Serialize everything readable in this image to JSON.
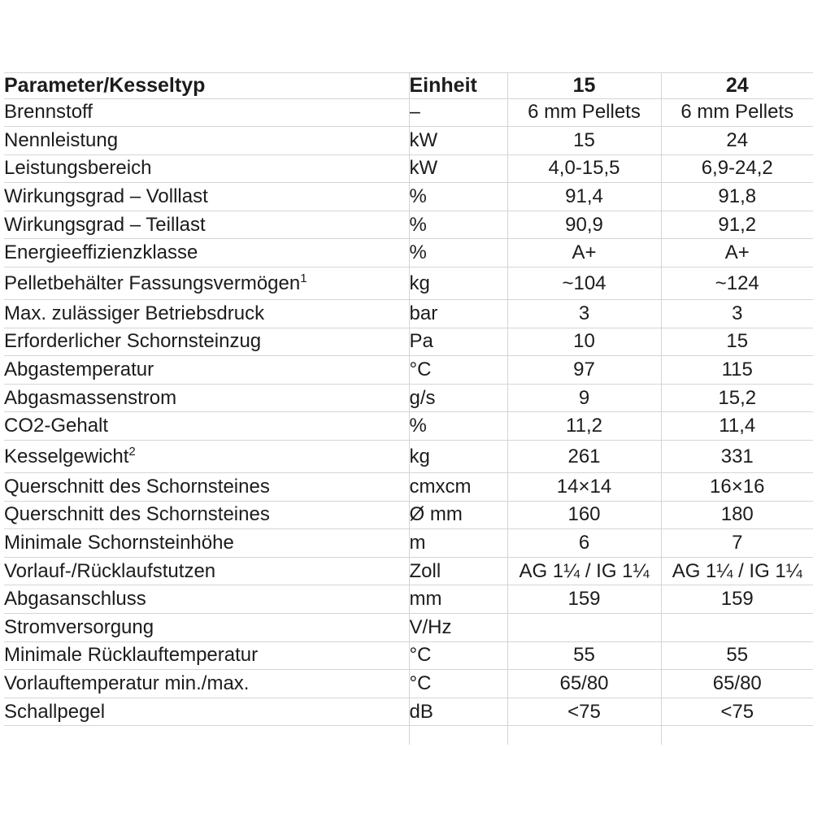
{
  "table": {
    "colors": {
      "grid": "#d2d6d9",
      "text": "#1c1c1e",
      "background": "#ffffff"
    },
    "header": {
      "param": "Parameter/Kesseltyp",
      "unit": "Einheit",
      "model_15": "15",
      "model_24": "24"
    },
    "rows": [
      {
        "param": "Brennstoff",
        "unit": "–",
        "v15": "6 mm Pellets",
        "v24": "6 mm Pellets"
      },
      {
        "param": "Nennleistung",
        "unit": "kW",
        "v15": "15",
        "v24": "24"
      },
      {
        "param": "Leistungsbereich",
        "unit": "kW",
        "v15": "4,0-15,5",
        "v24": "6,9-24,2"
      },
      {
        "param": "Wirkungsgrad – Volllast",
        "unit": "%",
        "v15": "91,4",
        "v24": "91,8"
      },
      {
        "param": "Wirkungsgrad – Teillast",
        "unit": "%",
        "v15": "90,9",
        "v24": "91,2"
      },
      {
        "param": "Energieeffizienzklasse",
        "unit": "%",
        "v15": "A+",
        "v24": "A+"
      },
      {
        "param": "Pelletbehälter Fassungsvermögen",
        "sup": "1",
        "unit": "kg",
        "v15": "~104",
        "v24": "~124",
        "tall": true
      },
      {
        "param": "Max. zulässiger Betriebsdruck",
        "unit": "bar",
        "v15": "3",
        "v24": "3"
      },
      {
        "param": "Erforderlicher Schornsteinzug",
        "unit": "Pa",
        "v15": "10",
        "v24": "15"
      },
      {
        "param": "Abgastemperatur",
        "unit": "°C",
        "v15": "97",
        "v24": "115"
      },
      {
        "param": "Abgasmassenstrom",
        "unit": "g/s",
        "v15": "9",
        "v24": "15,2"
      },
      {
        "param": "CO2-Gehalt",
        "unit": "%",
        "v15": "11,2",
        "v24": "11,4"
      },
      {
        "param": "Kesselgewicht",
        "sup": "2",
        "unit": "kg",
        "v15": "261",
        "v24": "331",
        "tall": true
      },
      {
        "param": "Querschnitt des Schornsteines",
        "unit": "cmxcm",
        "v15": "14×14",
        "v24": "16×16"
      },
      {
        "param": "Querschnitt des Schornsteines",
        "unit": "Ø mm",
        "v15": "160",
        "v24": "180"
      },
      {
        "param": "Minimale Schornsteinhöhe",
        "unit": "m",
        "v15": "6",
        "v24": "7"
      },
      {
        "param": "Vorlauf-/Rücklaufstutzen",
        "unit": "Zoll",
        "v15": "AG 1¼ / IG 1¼",
        "v24": "AG 1¼ / IG 1¼"
      },
      {
        "param": "Abgasanschluss",
        "unit": "mm",
        "v15": "159",
        "v24": "159"
      },
      {
        "param": "Stromversorgung",
        "unit": "V/Hz",
        "v15": "",
        "v24": ""
      },
      {
        "param": "Minimale Rücklauftemperatur",
        "unit": "°C",
        "v15": "55",
        "v24": "55"
      },
      {
        "param": "Vorlauftemperatur min./max.",
        "unit": "°C",
        "v15": "65/80",
        "v24": "65/80"
      },
      {
        "param": "Schallpegel",
        "unit": "dB",
        "v15": "<75",
        "v24": "<75"
      }
    ]
  }
}
